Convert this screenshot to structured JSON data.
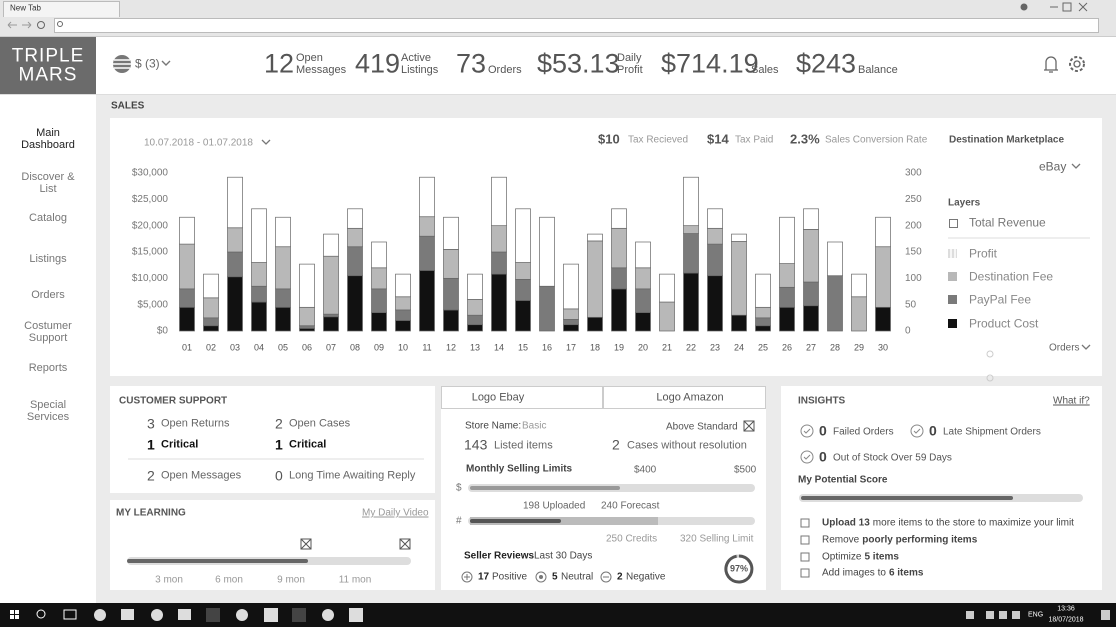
{
  "browser": {
    "tab": "New Tab"
  },
  "header": {
    "logo_top": "TRIPLE",
    "logo_bottom": "MARS",
    "currency": "$ (3)",
    "stats": [
      {
        "value": "12",
        "label": "Open Messages"
      },
      {
        "value": "419",
        "label": "Active Listings"
      },
      {
        "value": "73",
        "label": "Orders"
      },
      {
        "value": "$53.13",
        "label": "Daily Profit"
      },
      {
        "value": "$714.19",
        "label": "Sales"
      },
      {
        "value": "$243",
        "label": "Balance"
      }
    ]
  },
  "nav": [
    "Main Dashboard",
    "Discover & List",
    "Catalog",
    "Listings",
    "Orders",
    "Costumer Support",
    "Reports",
    "Special Services"
  ],
  "sales": {
    "section": "SALES",
    "date_range": "10.07.2018 - 01.07.2018",
    "metrics": [
      {
        "value": "$10",
        "label": "Tax Recieved"
      },
      {
        "value": "$14",
        "label": "Tax Paid"
      },
      {
        "value": "2.3%",
        "label": "Sales Conversion Rate"
      }
    ],
    "marketplace_label": "Destination Marketplace",
    "marketplace": "eBay",
    "layers_title": "Layers",
    "total_layer": "Total Revenue",
    "orders_toggle": "Orders",
    "chart": {
      "type": "bar",
      "stacked": true,
      "categories": [
        "01",
        "02",
        "03",
        "04",
        "05",
        "06",
        "07",
        "08",
        "09",
        "10",
        "11",
        "12",
        "13",
        "14",
        "15",
        "16",
        "17",
        "18",
        "19",
        "20",
        "21",
        "22",
        "23",
        "24",
        "25",
        "26",
        "27",
        "28",
        "29",
        "30"
      ],
      "series": [
        {
          "name": "Product Cost",
          "color": "#111111",
          "values": [
            4500,
            1000,
            10300,
            5500,
            4500,
            500,
            2700,
            10500,
            3500,
            2000,
            11500,
            4000,
            1200,
            10800,
            5800,
            0,
            1200,
            2600,
            8000,
            3500,
            0,
            11000,
            10500,
            3000,
            1000,
            4500,
            4800,
            0,
            0,
            4500
          ]
        },
        {
          "name": "PayPal Fee",
          "color": "#7a7a7a",
          "values": [
            3500,
            1500,
            4700,
            3000,
            3500,
            500,
            500,
            5500,
            4500,
            2000,
            6500,
            6000,
            1800,
            4200,
            4000,
            8500,
            1000,
            0,
            4000,
            4500,
            0,
            7500,
            6000,
            0,
            1500,
            3800,
            4500,
            10500,
            0,
            0
          ]
        },
        {
          "name": "Destination Fee",
          "color": "#b8b8b8",
          "values": [
            8500,
            3800,
            4600,
            4500,
            8000,
            3500,
            11000,
            3500,
            4000,
            2500,
            3700,
            5500,
            3000,
            5000,
            3200,
            0,
            2000,
            14500,
            7500,
            4000,
            5500,
            1500,
            3000,
            14000,
            2000,
            4500,
            10000,
            0,
            6500,
            11500
          ]
        },
        {
          "name": "Profit",
          "color": "#ffffff",
          "values": [
            5100,
            4500,
            9600,
            10200,
            5600,
            8200,
            4200,
            3700,
            4900,
            4300,
            7500,
            6100,
            4800,
            9200,
            10200,
            13100,
            8500,
            1300,
            3700,
            4900,
            5300,
            9200,
            3700,
            1400,
            6300,
            8800,
            3900,
            6400,
            4300,
            5600
          ]
        }
      ],
      "ylim": [
        0,
        30000
      ],
      "yticks": [
        {
          "value": 0,
          "label": "$0"
        },
        {
          "value": 5000,
          "label": "$5,000"
        },
        {
          "value": 10000,
          "label": "$10,000"
        },
        {
          "value": 15000,
          "label": "$15,000"
        },
        {
          "value": 20000,
          "label": "$20,000"
        },
        {
          "value": 25000,
          "label": "$25,000"
        },
        {
          "value": 30000,
          "label": "$30,000"
        }
      ],
      "y2lim": [
        0,
        300
      ],
      "y2ticks": [
        0,
        50,
        100,
        150,
        200,
        250,
        300
      ],
      "grid": false
    }
  },
  "support": {
    "title": "CUSTOMER SUPPORT",
    "items": [
      {
        "value": "3",
        "label": "Open Returns"
      },
      {
        "value": "2",
        "label": "Open Cases"
      },
      {
        "value": "1",
        "label": "Critical"
      },
      {
        "value": "1",
        "label": "Critical"
      },
      {
        "value": "2",
        "label": "Open Messages"
      },
      {
        "value": "0",
        "label": "Long Time Awaiting Reply"
      }
    ]
  },
  "learning": {
    "title": "MY LEARNING",
    "link": "My Daily Video",
    "months": [
      "3 mon",
      "6 mon",
      "9 mon",
      "11 mon"
    ]
  },
  "store": {
    "tabs": [
      "Logo Ebay",
      "Logo Amazon"
    ],
    "name_label": "Store Name:",
    "name": "Basic",
    "standard": "Above Standard",
    "listed": {
      "value": "143",
      "label": "Listed items"
    },
    "cases": {
      "value": "2",
      "label": "Cases without resolution"
    },
    "limits_title": "Monthly Selling Limits",
    "limit_a": "$400",
    "limit_b": "$500",
    "dollar_sign": "$",
    "hash_sign": "#",
    "uploaded": "198 Uploaded",
    "forecast": "240 Forecast",
    "credits": "250 Credits",
    "selling_limit": "320 Selling Limit",
    "reviews_title": "Seller Reviews",
    "reviews_period": "Last 30 Days",
    "reviews": [
      {
        "value": "17",
        "label": "Positive"
      },
      {
        "value": "5",
        "label": "Neutral"
      },
      {
        "value": "2",
        "label": "Negative"
      }
    ],
    "score": "97%"
  },
  "insights": {
    "title": "INSIGHTS",
    "link": "What if?",
    "items": [
      {
        "value": "0",
        "label": "Failed Orders"
      },
      {
        "value": "0",
        "label": "Late Shipment Orders"
      },
      {
        "value": "0",
        "label": "Out of Stock Over 59 Days"
      }
    ],
    "potential_title": "My Potential Score",
    "tasks": [
      {
        "bold": "Upload 13",
        "text": "more items to the store to maximize your limit"
      },
      {
        "text": "Remove",
        "bold": "poorly performing items"
      },
      {
        "text": "Optimize",
        "bold": "5 items"
      },
      {
        "text": "Add images to",
        "bold": "6 items"
      }
    ]
  },
  "taskbar": {
    "lang": "ENG",
    "time": "13:36",
    "date": "18/07/2018"
  }
}
